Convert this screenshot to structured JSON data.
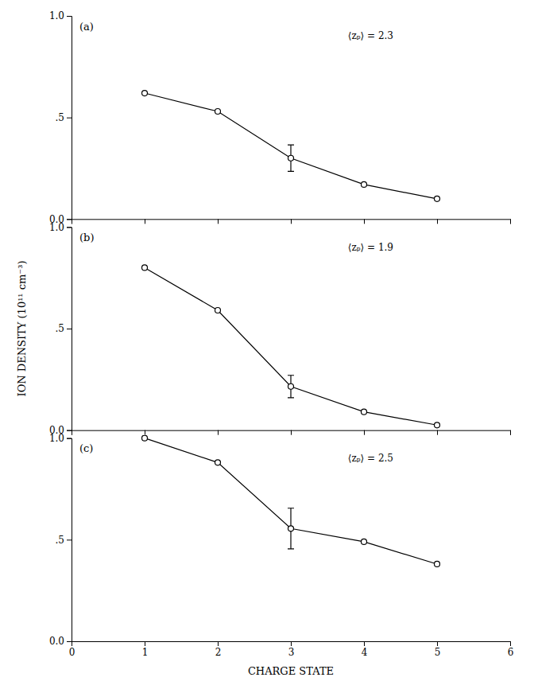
{
  "chart_data": [
    {
      "type": "line",
      "title": "(a)",
      "annotation": "⟨zₚ⟩ = 2.3",
      "x": [
        1,
        2,
        3,
        4,
        5
      ],
      "values": [
        0.62,
        0.53,
        0.3,
        0.17,
        0.1
      ],
      "yerr": [
        null,
        null,
        0.065,
        null,
        null
      ],
      "color": "#000000",
      "marker": "open-circle",
      "xlim": [
        0,
        6
      ],
      "ylim": [
        0.0,
        1.0
      ],
      "xticks": [
        0,
        1,
        2,
        3,
        4,
        5,
        6
      ],
      "yticks": [
        {
          "value": 0.0,
          "label": "0.0"
        },
        {
          "value": 0.5,
          "label": ".5"
        },
        {
          "value": 1.0,
          "label": "1.0"
        }
      ],
      "tick_labels": "y",
      "grid": false
    },
    {
      "type": "line",
      "title": "(b)",
      "annotation": "⟨zₚ⟩ = 1.9",
      "ylabel": "ION DENSITY (10¹¹ cm⁻³)",
      "x": [
        1,
        2,
        3,
        4,
        5
      ],
      "values": [
        0.8,
        0.59,
        0.215,
        0.09,
        0.025
      ],
      "yerr": [
        null,
        null,
        0.055,
        null,
        null
      ],
      "color": "#000000",
      "marker": "open-circle",
      "xlim": [
        0,
        6
      ],
      "ylim": [
        0.0,
        1.0
      ],
      "xticks": [
        0,
        1,
        2,
        3,
        4,
        5,
        6
      ],
      "yticks": [
        {
          "value": 0.0,
          "label": "0.0"
        },
        {
          "value": 0.5,
          "label": ".5"
        },
        {
          "value": 1.0,
          "label": "1.0"
        }
      ],
      "tick_labels": "y",
      "grid": false
    },
    {
      "type": "line",
      "title": "(c)",
      "annotation": "⟨zₚ⟩ = 2.5",
      "xlabel": "CHARGE STATE",
      "x": [
        1,
        2,
        3,
        4,
        5
      ],
      "values": [
        1.0,
        0.88,
        0.555,
        0.49,
        0.38
      ],
      "yerr": [
        null,
        null,
        0.1,
        null,
        null
      ],
      "color": "#000000",
      "marker": "open-circle",
      "xlim": [
        0,
        6
      ],
      "ylim": [
        0.0,
        1.0
      ],
      "xticks": [
        0,
        1,
        2,
        3,
        4,
        5,
        6
      ],
      "yticks": [
        {
          "value": 0.0,
          "label": "0.0"
        },
        {
          "value": 0.5,
          "label": ".5"
        },
        {
          "value": 1.0,
          "label": "1.0"
        }
      ],
      "grid": false
    }
  ]
}
